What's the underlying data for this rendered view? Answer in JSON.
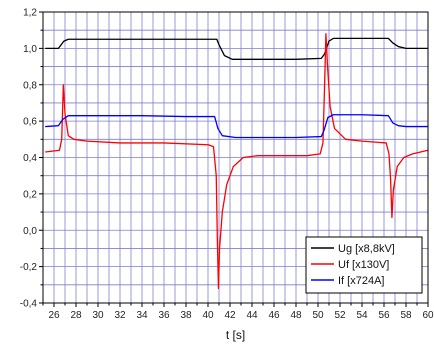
{
  "chart_data": {
    "type": "line",
    "xlabel": "t [s]",
    "ylabel": "",
    "xlim": [
      25,
      60
    ],
    "ylim": [
      -0.4,
      1.2
    ],
    "x_ticks": [
      26,
      28,
      30,
      32,
      34,
      36,
      38,
      40,
      42,
      44,
      46,
      48,
      50,
      52,
      54,
      56,
      58,
      60
    ],
    "y_ticks": [
      -0.4,
      -0.2,
      0.0,
      0.2,
      0.4,
      0.6,
      0.8,
      1.0,
      1.2
    ],
    "y_tick_labels": [
      "-0,4",
      "-0,2",
      "0,0",
      "0,2",
      "0,4",
      "0,6",
      "0,8",
      "1,0",
      "1,2"
    ],
    "x_grid_step": 1,
    "y_grid_step": 0.1,
    "grid": true,
    "grid_color": "#7f7fd0",
    "legend_position": "bottom-right",
    "series": [
      {
        "name": "Ug [x8,8kV]",
        "color": "#000000",
        "points": [
          [
            25.2,
            1.0
          ],
          [
            26.4,
            1.0
          ],
          [
            26.9,
            1.04
          ],
          [
            27.3,
            1.05
          ],
          [
            30,
            1.05
          ],
          [
            34,
            1.05
          ],
          [
            38,
            1.05
          ],
          [
            40.8,
            1.05
          ],
          [
            41.0,
            1.02
          ],
          [
            41.5,
            0.96
          ],
          [
            42.2,
            0.94
          ],
          [
            45,
            0.94
          ],
          [
            48,
            0.94
          ],
          [
            50.3,
            0.945
          ],
          [
            50.6,
            0.97
          ],
          [
            51.0,
            1.04
          ],
          [
            51.4,
            1.055
          ],
          [
            54,
            1.055
          ],
          [
            56.4,
            1.055
          ],
          [
            56.8,
            1.03
          ],
          [
            57.3,
            1.01
          ],
          [
            58,
            1.0
          ],
          [
            60,
            1.0
          ]
        ]
      },
      {
        "name": "Uf [x130V]",
        "color": "#ff0000",
        "points": [
          [
            25.2,
            0.43
          ],
          [
            26.5,
            0.44
          ],
          [
            26.7,
            0.5
          ],
          [
            26.85,
            0.8
          ],
          [
            27.0,
            0.64
          ],
          [
            27.3,
            0.52
          ],
          [
            27.8,
            0.5
          ],
          [
            29,
            0.49
          ],
          [
            32,
            0.48
          ],
          [
            36,
            0.48
          ],
          [
            40.0,
            0.47
          ],
          [
            40.5,
            0.46
          ],
          [
            40.75,
            0.3
          ],
          [
            40.85,
            -0.05
          ],
          [
            40.95,
            -0.32
          ],
          [
            41.05,
            -0.1
          ],
          [
            41.3,
            0.1
          ],
          [
            41.7,
            0.25
          ],
          [
            42.3,
            0.35
          ],
          [
            43.2,
            0.4
          ],
          [
            44.5,
            0.41
          ],
          [
            47,
            0.41
          ],
          [
            49,
            0.41
          ],
          [
            50.2,
            0.42
          ],
          [
            50.45,
            0.48
          ],
          [
            50.6,
            0.8
          ],
          [
            50.72,
            1.08
          ],
          [
            50.85,
            0.92
          ],
          [
            51.1,
            0.68
          ],
          [
            51.5,
            0.56
          ],
          [
            52.5,
            0.5
          ],
          [
            54,
            0.49
          ],
          [
            56.2,
            0.48
          ],
          [
            56.45,
            0.42
          ],
          [
            56.6,
            0.28
          ],
          [
            56.72,
            0.07
          ],
          [
            56.85,
            0.22
          ],
          [
            57.2,
            0.35
          ],
          [
            57.8,
            0.4
          ],
          [
            58.6,
            0.42
          ],
          [
            60,
            0.44
          ]
        ]
      },
      {
        "name": "If [x724A]",
        "color": "#0000ff",
        "points": [
          [
            25.2,
            0.57
          ],
          [
            26.4,
            0.575
          ],
          [
            26.8,
            0.61
          ],
          [
            27.3,
            0.63
          ],
          [
            30,
            0.63
          ],
          [
            34,
            0.63
          ],
          [
            38,
            0.625
          ],
          [
            40.6,
            0.625
          ],
          [
            40.9,
            0.56
          ],
          [
            41.3,
            0.52
          ],
          [
            42.5,
            0.51
          ],
          [
            45,
            0.51
          ],
          [
            48,
            0.51
          ],
          [
            50.3,
            0.515
          ],
          [
            50.55,
            0.55
          ],
          [
            50.9,
            0.62
          ],
          [
            51.4,
            0.635
          ],
          [
            54,
            0.635
          ],
          [
            56.4,
            0.63
          ],
          [
            56.8,
            0.59
          ],
          [
            57.3,
            0.575
          ],
          [
            58,
            0.57
          ],
          [
            60,
            0.57
          ]
        ]
      }
    ]
  }
}
